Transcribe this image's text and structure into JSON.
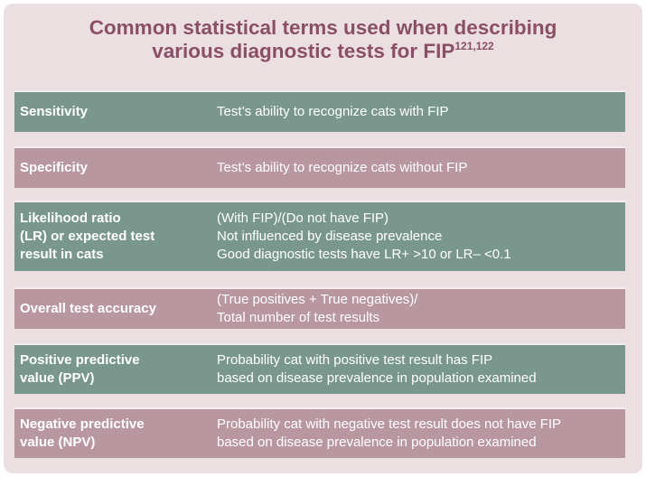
{
  "title": {
    "line1": "Common statistical terms used when describing",
    "line2": "various diagnostic tests for FIP",
    "refs": "121,122"
  },
  "rows": [
    {
      "term": [
        "Sensitivity"
      ],
      "definition": [
        "Test’s ability to recognize cats with FIP"
      ],
      "color": "#7a978d"
    },
    {
      "term": [
        "Specificity"
      ],
      "definition": [
        "Test’s ability to recognize cats without FIP"
      ],
      "color": "#b997a0"
    },
    {
      "term": [
        "Likelihood ratio",
        "(LR) or expected test",
        "result in cats"
      ],
      "definition": [
        "(With FIP)/(Do not have FIP)",
        "Not influenced by disease prevalence",
        "Good diagnostic tests have LR+ >10 or LR– <0.1"
      ],
      "color": "#7a978d"
    },
    {
      "term": [
        "Overall test accuracy"
      ],
      "definition": [
        "(True positives + True negatives)/",
        "Total number of test results"
      ],
      "color": "#b997a0"
    },
    {
      "term": [
        "Positive predictive",
        "value (PPV)"
      ],
      "definition": [
        "Probability cat with positive test result has FIP",
        "based on disease prevalence in population examined"
      ],
      "color": "#7a978d"
    },
    {
      "term": [
        "Negative predictive",
        "value (NPV)"
      ],
      "definition": [
        "Probability cat with negative test result does not have FIP",
        "based on disease prevalence in population examined"
      ],
      "color": "#b997a0"
    }
  ]
}
